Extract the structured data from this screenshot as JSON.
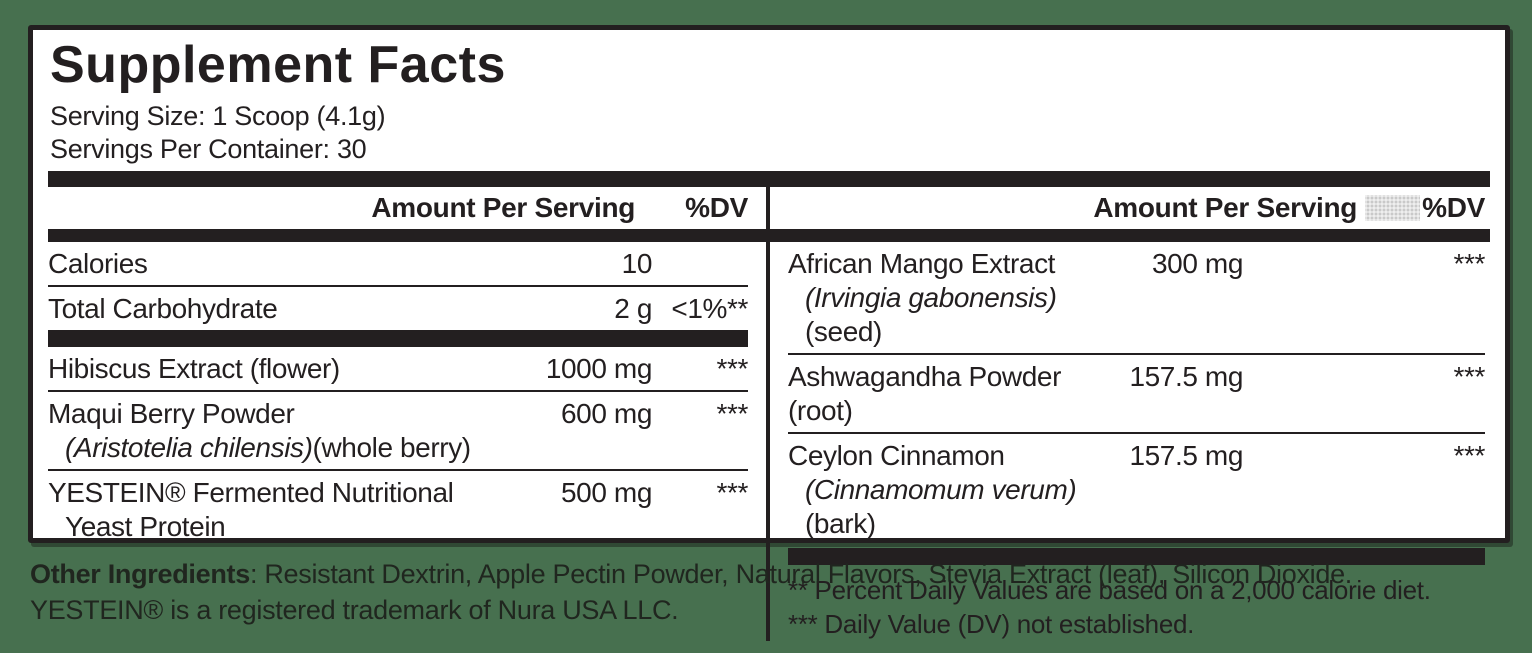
{
  "colors": {
    "background_green": "#47704f",
    "panel_background": "#ffffff",
    "text_black": "#231f20",
    "gray_placeholder": "#c9c9c9"
  },
  "title": "Supplement Facts",
  "serving": {
    "size": "Serving Size: 1 Scoop (4.1g)",
    "per_container": "Servings Per Container: 30"
  },
  "columns": {
    "left": {
      "header": {
        "amount": "Amount Per Serving",
        "dv": "%DV"
      },
      "rows": [
        {
          "name": "Calories",
          "amount": "10",
          "dv": ""
        },
        {
          "name": "Total Carbohydrate",
          "amount": "2 g",
          "dv": "<1%**"
        },
        {
          "name": "Hibiscus Extract (flower)",
          "amount": "1000 mg",
          "dv": "***"
        },
        {
          "name": "Maqui Berry Powder",
          "sub_italic": "(Aristotelia chilensis)",
          "sub_regular": "(whole berry)",
          "amount": "600 mg",
          "dv": "***"
        },
        {
          "name": "YESTEIN® Fermented Nutritional",
          "sub_regular": "Yeast Protein",
          "amount": "500 mg",
          "dv": "***"
        }
      ]
    },
    "right": {
      "header": {
        "amount": "Amount Per Serving",
        "dv": "%DV"
      },
      "rows": [
        {
          "name": "African Mango Extract",
          "sub_italic": "(Irvingia gabonensis)",
          "sub_regular": "(seed)",
          "amount": "300 mg",
          "dv": "***"
        },
        {
          "name": "Ashwagandha Powder (root)",
          "amount": "157.5 mg",
          "dv": "***"
        },
        {
          "name": "Ceylon Cinnamon",
          "sub_italic": "(Cinnamomum verum)",
          "sub_regular": "(bark)",
          "amount": "157.5 mg",
          "dv": "***"
        }
      ],
      "footnotes": [
        "** Percent Daily Values are based on a 2,000 calorie diet.",
        "*** Daily Value (DV) not established."
      ]
    }
  },
  "other_ingredients": {
    "label": "Other Ingredients",
    "text": ": Resistant Dextrin, Apple Pectin Powder, Natural Flavors, Stevia Extract (leaf), Silicon Dioxide."
  },
  "trademark": "YESTEIN® is a registered trademark of Nura USA LLC."
}
